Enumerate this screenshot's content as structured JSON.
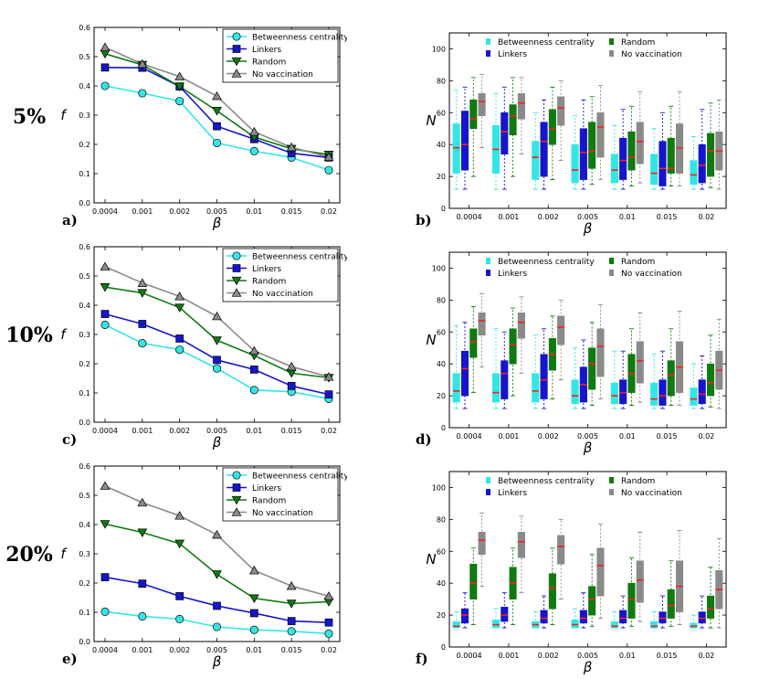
{
  "row_labels": [
    "5%",
    "10%",
    "20%"
  ],
  "panel_labels": [
    "a)",
    "b)",
    "c)",
    "d)",
    "e)",
    "f)"
  ],
  "chart_data": [
    {
      "id": "a",
      "type": "line",
      "x": [
        "0.0004",
        "0.001",
        "0.002",
        "0.005",
        "0.01",
        "0.015",
        "0.02"
      ],
      "xlabel": "β",
      "ylabel": "f",
      "ylim": [
        0,
        0.6
      ],
      "yticks": [
        "0.0",
        "0.1",
        "0.2",
        "0.3",
        "0.4",
        "0.5",
        "0.6"
      ],
      "legend": "top-right",
      "grid": false,
      "series": [
        {
          "name": "Betweenness centrality",
          "color": "#33e6e6",
          "marker": "circle",
          "values": [
            0.4,
            0.375,
            0.348,
            0.205,
            0.177,
            0.155,
            0.112
          ]
        },
        {
          "name": "Linkers",
          "color": "#1515cc",
          "marker": "square",
          "values": [
            0.463,
            0.462,
            0.398,
            0.262,
            0.218,
            0.17,
            0.155
          ]
        },
        {
          "name": "Random",
          "color": "#107a10",
          "marker": "triangle-down",
          "values": [
            0.51,
            0.472,
            0.398,
            0.315,
            0.225,
            0.185,
            0.165
          ]
        },
        {
          "name": "No vaccination",
          "color": "#8a8a8a",
          "marker": "triangle-up",
          "values": [
            0.532,
            0.475,
            0.432,
            0.365,
            0.243,
            0.19,
            0.157
          ]
        }
      ]
    },
    {
      "id": "b",
      "type": "box",
      "x": [
        "0.0004",
        "0.001",
        "0.002",
        "0.005",
        "0.01",
        "0.015",
        "0.02"
      ],
      "xlabel": "β",
      "ylabel": "N",
      "ylim": [
        0,
        110
      ],
      "yticks": [
        "0",
        "20",
        "40",
        "60",
        "80",
        "100"
      ],
      "legend": "top-right",
      "grid": false,
      "series": [
        {
          "name": "Betweenness centrality",
          "color": "#33e6e6",
          "boxes": [
            [
              12,
              22,
              38,
              53,
              74
            ],
            [
              12,
              22,
              37,
              52,
              72
            ],
            [
              12,
              18,
              32,
              42,
              60
            ],
            [
              12,
              16,
              24,
              40,
              58
            ],
            [
              12,
              16,
              24,
              34,
              52
            ],
            [
              12,
              15,
              22,
              34,
              50
            ],
            [
              12,
              15,
              21,
              30,
              45
            ]
          ]
        },
        {
          "name": "Linkers",
          "color": "#1515cc",
          "boxes": [
            [
              12,
              24,
              40,
              61,
              76
            ],
            [
              12,
              34,
              48,
              60,
              76
            ],
            [
              12,
              20,
              42,
              54,
              68
            ],
            [
              12,
              18,
              35,
              50,
              68
            ],
            [
              12,
              18,
              30,
              44,
              62
            ],
            [
              12,
              14,
              25,
              42,
              60
            ],
            [
              12,
              16,
              27,
              40,
              62
            ]
          ]
        },
        {
          "name": "Random",
          "color": "#107a10",
          "boxes": [
            [
              20,
              50,
              56,
              68,
              82
            ],
            [
              20,
              46,
              58,
              65,
              82
            ],
            [
              18,
              40,
              50,
              62,
              76
            ],
            [
              15,
              25,
              36,
              54,
              70
            ],
            [
              14,
              24,
              32,
              48,
              64
            ],
            [
              14,
              22,
              25,
              44,
              64
            ],
            [
              13,
              20,
              36,
              47,
              66
            ]
          ]
        },
        {
          "name": "No vaccination",
          "color": "#8a8a8a",
          "boxes": [
            [
              38,
              58,
              67,
              72,
              84
            ],
            [
              34,
              56,
              66,
              72,
              82
            ],
            [
              30,
              52,
              63,
              70,
              80
            ],
            [
              18,
              32,
              51,
              60,
              77
            ],
            [
              16,
              28,
              42,
              54,
              73
            ],
            [
              14,
              22,
              38,
              53,
              73
            ],
            [
              12,
              24,
              36,
              48,
              68
            ]
          ]
        }
      ]
    },
    {
      "id": "c",
      "type": "line",
      "x": [
        "0.0004",
        "0.001",
        "0.002",
        "0.005",
        "0.01",
        "0.015",
        "0.02"
      ],
      "xlabel": "β",
      "ylabel": "f",
      "ylim": [
        0,
        0.6
      ],
      "yticks": [
        "0.0",
        "0.1",
        "0.2",
        "0.3",
        "0.4",
        "0.5",
        "0.6"
      ],
      "legend": "top-right",
      "grid": false,
      "series": [
        {
          "name": "Betweenness centrality",
          "color": "#33e6e6",
          "marker": "circle",
          "values": [
            0.333,
            0.27,
            0.248,
            0.184,
            0.11,
            0.104,
            0.08
          ]
        },
        {
          "name": "Linkers",
          "color": "#1515cc",
          "marker": "square",
          "values": [
            0.37,
            0.336,
            0.286,
            0.213,
            0.18,
            0.124,
            0.095
          ]
        },
        {
          "name": "Random",
          "color": "#107a10",
          "marker": "triangle-down",
          "values": [
            0.462,
            0.442,
            0.392,
            0.28,
            0.228,
            0.168,
            0.152
          ]
        },
        {
          "name": "No vaccination",
          "color": "#8a8a8a",
          "marker": "triangle-up",
          "values": [
            0.532,
            0.476,
            0.43,
            0.362,
            0.244,
            0.19,
            0.155
          ]
        }
      ]
    },
    {
      "id": "d",
      "type": "box",
      "x": [
        "0.0004",
        "0.001",
        "0.002",
        "0.005",
        "0.01",
        "0.015",
        "0.02"
      ],
      "xlabel": "β",
      "ylabel": "N",
      "ylim": [
        0,
        110
      ],
      "yticks": [
        "0",
        "20",
        "40",
        "60",
        "80",
        "100"
      ],
      "legend": "top-right",
      "grid": false,
      "series": [
        {
          "name": "Betweenness centrality",
          "color": "#33e6e6",
          "boxes": [
            [
              12,
              16,
              23,
              34,
              64
            ],
            [
              12,
              16,
              22,
              34,
              62
            ],
            [
              12,
              16,
              23,
              34,
              58
            ],
            [
              12,
              15,
              20,
              30,
              50
            ],
            [
              12,
              15,
              20,
              28,
              48
            ],
            [
              12,
              14,
              18,
              28,
              46
            ],
            [
              12,
              14,
              18,
              25,
              40
            ]
          ]
        },
        {
          "name": "Linkers",
          "color": "#1515cc",
          "boxes": [
            [
              12,
              20,
              37,
              48,
              66
            ],
            [
              12,
              18,
              34,
              42,
              60
            ],
            [
              12,
              18,
              30,
              46,
              62
            ],
            [
              12,
              16,
              27,
              38,
              55
            ],
            [
              12,
              15,
              22,
              30,
              48
            ],
            [
              12,
              14,
              20,
              30,
              48
            ],
            [
              12,
              15,
              21,
              30,
              45
            ]
          ]
        },
        {
          "name": "Random",
          "color": "#107a10",
          "boxes": [
            [
              22,
              44,
              54,
              62,
              76
            ],
            [
              20,
              40,
              52,
              62,
              75
            ],
            [
              18,
              36,
              46,
              56,
              70
            ],
            [
              14,
              24,
              40,
              50,
              66
            ],
            [
              14,
              22,
              34,
              46,
              62
            ],
            [
              14,
              20,
              33,
              42,
              62
            ],
            [
              13,
              20,
              28,
              40,
              58
            ]
          ]
        },
        {
          "name": "No vaccination",
          "color": "#8a8a8a",
          "boxes": [
            [
              38,
              58,
              67,
              72,
              84
            ],
            [
              34,
              56,
              66,
              72,
              82
            ],
            [
              30,
              52,
              63,
              70,
              80
            ],
            [
              18,
              32,
              51,
              62,
              77
            ],
            [
              16,
              28,
              42,
              54,
              72
            ],
            [
              14,
              22,
              38,
              54,
              73
            ],
            [
              12,
              24,
              36,
              48,
              68
            ]
          ]
        }
      ]
    },
    {
      "id": "e",
      "type": "line",
      "x": [
        "0.0004",
        "0.001",
        "0.002",
        "0.005",
        "0.01",
        "0.015",
        "0.02"
      ],
      "xlabel": "β",
      "ylabel": "f",
      "ylim": [
        0,
        0.6
      ],
      "yticks": [
        "0.0",
        "0.1",
        "0.2",
        "0.3",
        "0.4",
        "0.5",
        "0.6"
      ],
      "legend": "top-right",
      "grid": false,
      "series": [
        {
          "name": "Betweenness centrality",
          "color": "#33e6e6",
          "marker": "circle",
          "values": [
            0.102,
            0.086,
            0.077,
            0.05,
            0.04,
            0.035,
            0.027
          ]
        },
        {
          "name": "Linkers",
          "color": "#1515cc",
          "marker": "square",
          "values": [
            0.22,
            0.198,
            0.155,
            0.122,
            0.097,
            0.07,
            0.065
          ]
        },
        {
          "name": "Random",
          "color": "#107a10",
          "marker": "triangle-down",
          "values": [
            0.402,
            0.373,
            0.335,
            0.23,
            0.148,
            0.13,
            0.136
          ]
        },
        {
          "name": "No vaccination",
          "color": "#8a8a8a",
          "marker": "triangle-up",
          "values": [
            0.532,
            0.475,
            0.43,
            0.365,
            0.243,
            0.19,
            0.155
          ]
        }
      ]
    },
    {
      "id": "f",
      "type": "box",
      "x": [
        "0.0004",
        "0.001",
        "0.002",
        "0.005",
        "0.01",
        "0.015",
        "0.02"
      ],
      "xlabel": "β",
      "ylabel": "N",
      "ylim": [
        0,
        110
      ],
      "yticks": [
        "0",
        "20",
        "40",
        "60",
        "80",
        "100"
      ],
      "legend": "top-right",
      "grid": false,
      "series": [
        {
          "name": "Betweenness centrality",
          "color": "#33e6e6",
          "boxes": [
            [
              12,
              12,
              13,
              16,
              22
            ],
            [
              12,
              12,
              14,
              17,
              24
            ],
            [
              12,
              12,
              14,
              16,
              22
            ],
            [
              12,
              12,
              14,
              17,
              24
            ],
            [
              12,
              12,
              13,
              16,
              22
            ],
            [
              12,
              12,
              13,
              16,
              22
            ],
            [
              12,
              12,
              13,
              15,
              20
            ]
          ]
        },
        {
          "name": "Linkers",
          "color": "#1515cc",
          "boxes": [
            [
              12,
              15,
              20,
              24,
              34
            ],
            [
              12,
              16,
              20,
              25,
              34
            ],
            [
              12,
              15,
              18,
              23,
              32
            ],
            [
              12,
              15,
              18,
              23,
              34
            ],
            [
              12,
              15,
              18,
              23,
              32
            ],
            [
              12,
              15,
              18,
              22,
              32
            ],
            [
              12,
              15,
              18,
              22,
              32
            ]
          ]
        },
        {
          "name": "Random",
          "color": "#107a10",
          "boxes": [
            [
              14,
              30,
              40,
              52,
              62
            ],
            [
              14,
              30,
              40,
              50,
              62
            ],
            [
              14,
              24,
              37,
              46,
              62
            ],
            [
              13,
              20,
              30,
              38,
              58
            ],
            [
              13,
              18,
              30,
              40,
              56
            ],
            [
              13,
              18,
              26,
              36,
              54
            ],
            [
              12,
              18,
              24,
              32,
              50
            ]
          ]
        },
        {
          "name": "No vaccination",
          "color": "#8a8a8a",
          "boxes": [
            [
              38,
              58,
              67,
              72,
              84
            ],
            [
              34,
              56,
              66,
              72,
              82
            ],
            [
              30,
              52,
              63,
              70,
              80
            ],
            [
              18,
              32,
              51,
              62,
              77
            ],
            [
              16,
              28,
              42,
              54,
              72
            ],
            [
              14,
              22,
              38,
              54,
              73
            ],
            [
              12,
              24,
              36,
              48,
              68
            ]
          ]
        }
      ]
    }
  ]
}
